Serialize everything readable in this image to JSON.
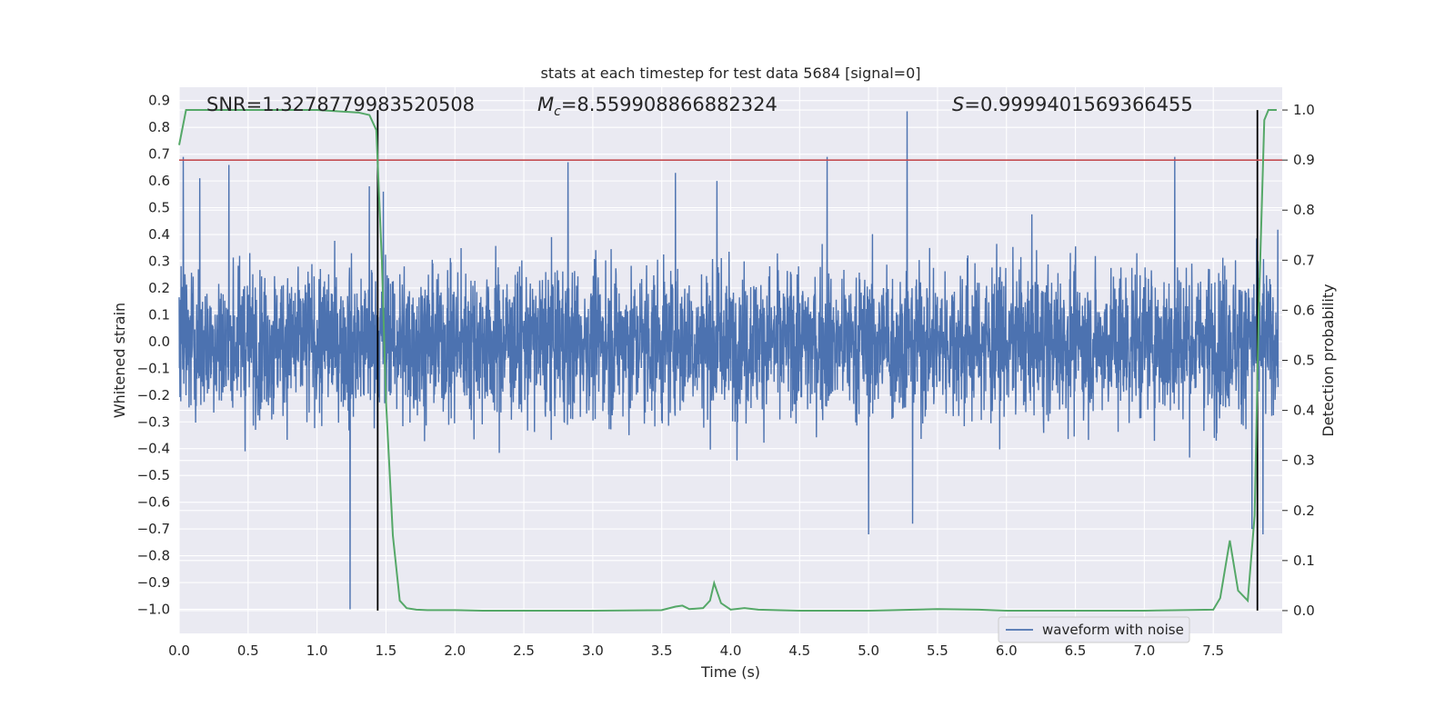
{
  "chart_data": {
    "type": "line",
    "title": "stats at each timestep for test data 5684 [signal=0]",
    "xlabel": "Time (s)",
    "ylabel": "Whitened strain",
    "y2label": "Detection probability",
    "xlim": [
      0.0,
      8.0
    ],
    "ylim": [
      -1.09,
      0.95
    ],
    "y2lim": [
      -0.0455,
      1.0455
    ],
    "xticks": [
      "0.0",
      "0.5",
      "1.0",
      "1.5",
      "2.0",
      "2.5",
      "3.0",
      "3.5",
      "4.0",
      "4.5",
      "5.0",
      "5.5",
      "6.0",
      "6.5",
      "7.0",
      "7.5"
    ],
    "yticks": [
      "0.9",
      "0.8",
      "0.7",
      "0.6",
      "0.5",
      "0.4",
      "0.3",
      "0.2",
      "0.1",
      "0.0",
      "−0.1",
      "−0.2",
      "−0.3",
      "−0.4",
      "−0.5",
      "−0.6",
      "−0.7",
      "−0.8",
      "−0.9",
      "−1.0"
    ],
    "y2ticks": [
      "1.0",
      "0.9",
      "0.8",
      "0.7",
      "0.6",
      "0.5",
      "0.4",
      "0.3",
      "0.2",
      "0.1",
      "0.0"
    ],
    "grid": true,
    "annotations": {
      "snr": "SNR=1.3278779983520508",
      "mc_symbol": "M",
      "mc_subscript": "c",
      "mc_value": "=8.559908866882324",
      "s_symbol": "S",
      "s_value": "=0.9999401569366455"
    },
    "threshold": {
      "axis": "right",
      "value": 0.9,
      "color": "#c44e52"
    },
    "vertical_lines": {
      "x": [
        1.44,
        7.82
      ],
      "color": "#000000"
    },
    "waveform": {
      "name": "waveform with noise",
      "color": "#4c72b0",
      "envelope_typical": 0.38,
      "spikes": [
        {
          "x": 0.03,
          "y": 0.69
        },
        {
          "x": 0.15,
          "y": 0.61
        },
        {
          "x": 0.36,
          "y": 0.66
        },
        {
          "x": 1.24,
          "y": -1.0
        },
        {
          "x": 1.38,
          "y": 0.58
        },
        {
          "x": 1.48,
          "y": 0.56
        },
        {
          "x": 2.82,
          "y": 0.67
        },
        {
          "x": 3.6,
          "y": 0.63
        },
        {
          "x": 3.9,
          "y": 0.6
        },
        {
          "x": 4.7,
          "y": 0.69
        },
        {
          "x": 5.0,
          "y": -0.72
        },
        {
          "x": 5.28,
          "y": 0.86
        },
        {
          "x": 5.32,
          "y": -0.68
        },
        {
          "x": 7.22,
          "y": 0.69
        },
        {
          "x": 7.78,
          "y": -0.7
        },
        {
          "x": 7.86,
          "y": -0.72
        }
      ]
    },
    "detection_probability": {
      "color": "#55a868",
      "x": [
        0.0,
        0.05,
        0.1,
        1.0,
        1.3,
        1.38,
        1.43,
        1.47,
        1.5,
        1.55,
        1.6,
        1.65,
        1.72,
        1.8,
        2.0,
        2.2,
        2.5,
        3.0,
        3.5,
        3.6,
        3.65,
        3.7,
        3.8,
        3.85,
        3.88,
        3.93,
        4.0,
        4.1,
        4.2,
        4.5,
        5.0,
        5.5,
        5.8,
        6.0,
        6.5,
        7.0,
        7.5,
        7.55,
        7.62,
        7.68,
        7.75,
        7.8,
        7.83,
        7.87,
        7.9,
        7.96
      ],
      "y": [
        0.93,
        1.0,
        1.0,
        1.0,
        0.995,
        0.99,
        0.96,
        0.7,
        0.42,
        0.15,
        0.02,
        0.005,
        0.002,
        0.001,
        0.001,
        0.0,
        0.0,
        0.0,
        0.001,
        0.008,
        0.01,
        0.003,
        0.005,
        0.02,
        0.055,
        0.015,
        0.002,
        0.005,
        0.002,
        0.0,
        0.0,
        0.003,
        0.002,
        0.0,
        0.0,
        0.0,
        0.002,
        0.025,
        0.14,
        0.04,
        0.02,
        0.19,
        0.6,
        0.98,
        1.0,
        1.0
      ]
    },
    "legend": {
      "label": "waveform with noise",
      "location": "lower-right"
    }
  }
}
